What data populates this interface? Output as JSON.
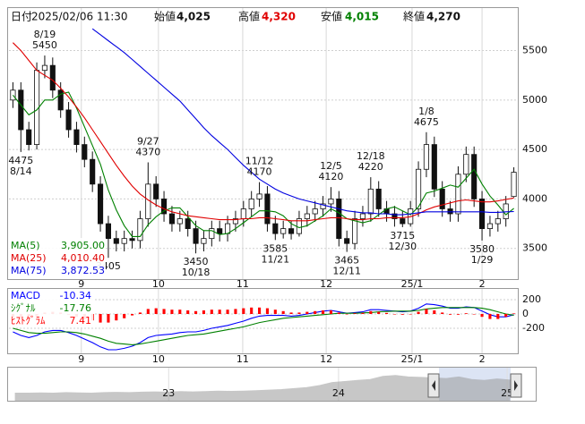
{
  "header": {
    "date_label": "日付",
    "date": "2025/02/06 11:30",
    "open_label": "始値",
    "open": "4,025",
    "high_label": "高値",
    "high": "4,320",
    "low_label": "安値",
    "low": "4,015",
    "close_label": "終値",
    "close": "4,270"
  },
  "chart_data": [
    {
      "type": "candlestick",
      "up_color": "#ffffff",
      "down_color": "#111111",
      "grid": true,
      "xlim": [
        -0.5,
        63.5
      ],
      "ylim": [
        3190,
        5740
      ],
      "yticks": [
        3500,
        4000,
        4500,
        5000,
        5500
      ],
      "xticks": [
        {
          "value": 8.6,
          "label": "9"
        },
        {
          "value": 18.3,
          "label": "10"
        },
        {
          "value": 28.9,
          "label": "11"
        },
        {
          "value": 39.4,
          "label": "12"
        },
        {
          "value": 50.2,
          "label": "25/1"
        },
        {
          "value": 59.0,
          "label": "2"
        }
      ],
      "candles": {
        "open": [
          5000,
          5100,
          4700,
          4550,
          5300,
          5350,
          5100,
          4900,
          4700,
          4550,
          4400,
          4150,
          3750,
          3600,
          3550,
          3600,
          3580,
          3800,
          4150,
          4000,
          3850,
          3750,
          3800,
          3700,
          3550,
          3600,
          3700,
          3650,
          3750,
          3800,
          3900,
          4000,
          4050,
          3750,
          3650,
          3700,
          3650,
          3800,
          3850,
          3900,
          3950,
          4000,
          3600,
          3550,
          3800,
          3850,
          4100,
          3900,
          3850,
          3800,
          3750,
          3900,
          4300,
          4550,
          4100,
          3900,
          3850,
          4250,
          4450,
          4000,
          3700,
          3750,
          3800,
          4025
        ],
        "high": [
          5180,
          5180,
          4780,
          5380,
          5450,
          5430,
          5180,
          4980,
          4780,
          4630,
          4480,
          4230,
          3830,
          3680,
          3680,
          3680,
          3880,
          4370,
          4230,
          4080,
          3930,
          3880,
          3880,
          3780,
          3680,
          3780,
          3780,
          3830,
          3880,
          3980,
          4080,
          4170,
          4130,
          3830,
          3780,
          3780,
          3880,
          3930,
          3980,
          4030,
          4120,
          4080,
          3680,
          3880,
          3930,
          4220,
          4180,
          3980,
          3930,
          3880,
          3980,
          4380,
          4675,
          4630,
          4180,
          3980,
          4330,
          4530,
          4530,
          4080,
          3830,
          3880,
          4030,
          4320
        ],
        "low": [
          4920,
          4475,
          4490,
          4500,
          5220,
          5020,
          4820,
          4620,
          4470,
          4320,
          4070,
          3670,
          3405,
          3470,
          3470,
          3500,
          3500,
          3720,
          3920,
          3770,
          3670,
          3670,
          3620,
          3450,
          3470,
          3520,
          3570,
          3570,
          3670,
          3720,
          3820,
          3920,
          3670,
          3585,
          3600,
          3590,
          3620,
          3720,
          3770,
          3820,
          3870,
          3520,
          3465,
          3490,
          3720,
          3770,
          3820,
          3770,
          3720,
          3715,
          3720,
          3820,
          4220,
          4020,
          3820,
          3770,
          3770,
          4170,
          3920,
          3580,
          3620,
          3670,
          3720,
          4015
        ],
        "close": [
          5100,
          4700,
          4550,
          5300,
          5350,
          5100,
          4900,
          4700,
          4550,
          4400,
          4150,
          3750,
          3600,
          3550,
          3600,
          3580,
          3800,
          4150,
          4000,
          3850,
          3750,
          3800,
          3700,
          3550,
          3600,
          3700,
          3650,
          3750,
          3800,
          3900,
          4000,
          4050,
          3750,
          3650,
          3700,
          3650,
          3800,
          3850,
          3900,
          3950,
          4000,
          3600,
          3550,
          3800,
          3850,
          4100,
          3900,
          3850,
          3800,
          3750,
          3900,
          4300,
          4550,
          4100,
          3900,
          3850,
          4250,
          4450,
          4000,
          3700,
          3750,
          3800,
          3950,
          4270
        ]
      },
      "series": [
        {
          "name": "MA(5)",
          "color": "#008000",
          "last_label": "3,905.00",
          "values": [
            5050,
            4950,
            4850,
            4900,
            5000,
            5000,
            5060,
            5080,
            4920,
            4730,
            4540,
            4350,
            4090,
            3890,
            3730,
            3620,
            3620,
            3740,
            3820,
            3880,
            3910,
            3910,
            3820,
            3730,
            3680,
            3680,
            3640,
            3650,
            3700,
            3760,
            3820,
            3880,
            3880,
            3870,
            3830,
            3750,
            3710,
            3730,
            3780,
            3830,
            3900,
            3860,
            3800,
            3780,
            3760,
            3780,
            3840,
            3900,
            3920,
            3880,
            3840,
            3920,
            4060,
            4080,
            4110,
            4140,
            4120,
            4210,
            4300,
            4150,
            4030,
            3940,
            3840,
            3905
          ]
        },
        {
          "name": "MA(25)",
          "color": "#e00000",
          "last_label": "4,010.40",
          "values": [
            5580,
            5500,
            5400,
            5300,
            5250,
            5200,
            5120,
            5030,
            4930,
            4820,
            4700,
            4580,
            4460,
            4340,
            4230,
            4130,
            4050,
            3990,
            3940,
            3900,
            3870,
            3850,
            3830,
            3820,
            3810,
            3800,
            3790,
            3790,
            3790,
            3800,
            3800,
            3810,
            3810,
            3800,
            3790,
            3780,
            3780,
            3780,
            3790,
            3800,
            3810,
            3810,
            3800,
            3790,
            3790,
            3800,
            3800,
            3810,
            3810,
            3810,
            3820,
            3850,
            3890,
            3920,
            3940,
            3960,
            3980,
            3990,
            3980,
            3970,
            3970,
            3980,
            3995,
            4010.4
          ]
        },
        {
          "name": "MA(75)",
          "color": "#0000e0",
          "last_label": "3,872.53",
          "values": [
            null,
            null,
            null,
            null,
            null,
            null,
            null,
            null,
            null,
            null,
            5720,
            5660,
            5600,
            5540,
            5480,
            5410,
            5340,
            5270,
            5200,
            5130,
            5060,
            4990,
            4900,
            4810,
            4720,
            4640,
            4570,
            4500,
            4420,
            4340,
            4270,
            4200,
            4150,
            4100,
            4060,
            4030,
            4000,
            3980,
            3960,
            3940,
            3920,
            3900,
            3880,
            3870,
            3860,
            3860,
            3850,
            3850,
            3840,
            3840,
            3850,
            3860,
            3870,
            3870,
            3870,
            3870,
            3870,
            3870,
            3870,
            3870,
            3865,
            3865,
            3870,
            3872.53
          ]
        }
      ],
      "annotations": [
        {
          "date": "8/19",
          "value": 5450
        },
        {
          "date": "8/14",
          "value": 4475
        },
        {
          "date": "9/27",
          "value": 4370
        },
        {
          "date": null,
          "value": 3405
        },
        {
          "date": "10/18",
          "value": 3450
        },
        {
          "date": "11/12",
          "value": 4170
        },
        {
          "date": "11/21",
          "value": 3585
        },
        {
          "date": "12/5",
          "value": 4120
        },
        {
          "date": "12/18",
          "value": 4220
        },
        {
          "date": "12/11",
          "value": 3465
        },
        {
          "date": "1/8",
          "value": 4675
        },
        {
          "date": "12/30",
          "value": 3715
        },
        {
          "date": "1/29",
          "value": 3580
        }
      ]
    },
    {
      "type": "line",
      "grid": true,
      "xlim": [
        -0.5,
        63.5
      ],
      "ylim": [
        -550,
        350
      ],
      "yticks": [
        200,
        0,
        -200
      ],
      "xticks": [
        {
          "value": 8.6,
          "label": "9"
        },
        {
          "value": 18.3,
          "label": "10"
        },
        {
          "value": 28.9,
          "label": "11"
        },
        {
          "value": 39.4,
          "label": "12"
        },
        {
          "value": 50.2,
          "label": "25/1"
        },
        {
          "value": 59.0,
          "label": "2"
        }
      ],
      "series": [
        {
          "name": "MACD",
          "color": "#0000ff",
          "style": "line",
          "values": [
            -250,
            -300,
            -330,
            -300,
            -250,
            -230,
            -230,
            -260,
            -300,
            -350,
            -400,
            -460,
            -500,
            -500,
            -480,
            -450,
            -400,
            -330,
            -300,
            -290,
            -280,
            -260,
            -250,
            -250,
            -230,
            -200,
            -180,
            -160,
            -130,
            -100,
            -60,
            -30,
            -20,
            -20,
            -20,
            -30,
            -20,
            0,
            20,
            40,
            50,
            30,
            10,
            20,
            30,
            60,
            60,
            50,
            40,
            30,
            40,
            80,
            140,
            130,
            110,
            80,
            80,
            100,
            90,
            40,
            -10,
            -40,
            -40,
            -10.34
          ]
        },
        {
          "name": "ｼｸﾞﾅﾙ",
          "color": "#008000",
          "style": "line",
          "values": [
            -200,
            -230,
            -260,
            -270,
            -270,
            -260,
            -250,
            -250,
            -260,
            -280,
            -310,
            -340,
            -380,
            -410,
            -420,
            -430,
            -420,
            -400,
            -380,
            -360,
            -340,
            -320,
            -300,
            -290,
            -280,
            -260,
            -240,
            -220,
            -200,
            -180,
            -150,
            -120,
            -100,
            -80,
            -60,
            -50,
            -40,
            -30,
            -20,
            -10,
            0,
            10,
            10,
            10,
            15,
            20,
            30,
            35,
            40,
            40,
            40,
            50,
            70,
            80,
            90,
            90,
            90,
            90,
            90,
            80,
            60,
            30,
            0,
            -17.76
          ]
        },
        {
          "name": "ﾋｽﾄｸﾞﾗﾑ",
          "color": "#ff0000",
          "style": "bar",
          "values": [
            -50,
            -70,
            -70,
            -30,
            20,
            30,
            20,
            -10,
            -40,
            -70,
            -90,
            -120,
            -120,
            -90,
            -60,
            -20,
            20,
            70,
            80,
            70,
            60,
            60,
            50,
            40,
            50,
            60,
            60,
            60,
            70,
            80,
            90,
            90,
            80,
            60,
            40,
            20,
            20,
            30,
            40,
            50,
            50,
            20,
            0,
            10,
            15,
            40,
            30,
            15,
            0,
            -10,
            0,
            30,
            70,
            50,
            20,
            -10,
            -10,
            10,
            0,
            -40,
            -70,
            -70,
            -40,
            7.41
          ]
        }
      ]
    },
    {
      "type": "area",
      "color": "#9a9a9a",
      "xlim": [
        -0.5,
        39.5
      ],
      "ylim": [
        0,
        6000
      ],
      "xticks": [
        {
          "value": 12.1,
          "label": "23"
        },
        {
          "value": 25.5,
          "label": "24"
        },
        {
          "value": 38.8,
          "label": "25"
        }
      ],
      "values": [
        1500,
        1500,
        1550,
        1500,
        1600,
        1550,
        1500,
        1600,
        1650,
        1600,
        1700,
        1750,
        1700,
        1800,
        1750,
        1800,
        1900,
        1850,
        1900,
        2000,
        2100,
        2200,
        2400,
        2600,
        3000,
        3600,
        3800,
        4000,
        4200,
        4800,
        5000,
        4700,
        4600,
        4500,
        4400,
        4700,
        4200,
        4000,
        4300,
        4100
      ]
    }
  ]
}
